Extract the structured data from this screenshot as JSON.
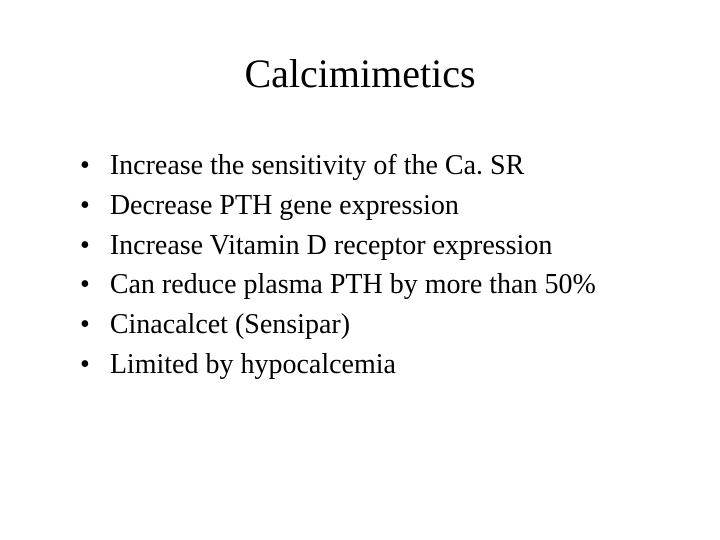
{
  "slide": {
    "title": "Calcimimetics",
    "bullets": [
      "Increase the sensitivity of the Ca. SR",
      "Decrease PTH gene expression",
      "Increase Vitamin D receptor expression",
      "Can reduce plasma PTH by more than 50%",
      "Cinacalcet (Sensipar)",
      "Limited by hypocalcemia"
    ],
    "bullet_marker": "•",
    "title_fontsize": 40,
    "bullet_fontsize": 28,
    "background_color": "#ffffff",
    "text_color": "#000000",
    "font_family": "Times New Roman"
  }
}
